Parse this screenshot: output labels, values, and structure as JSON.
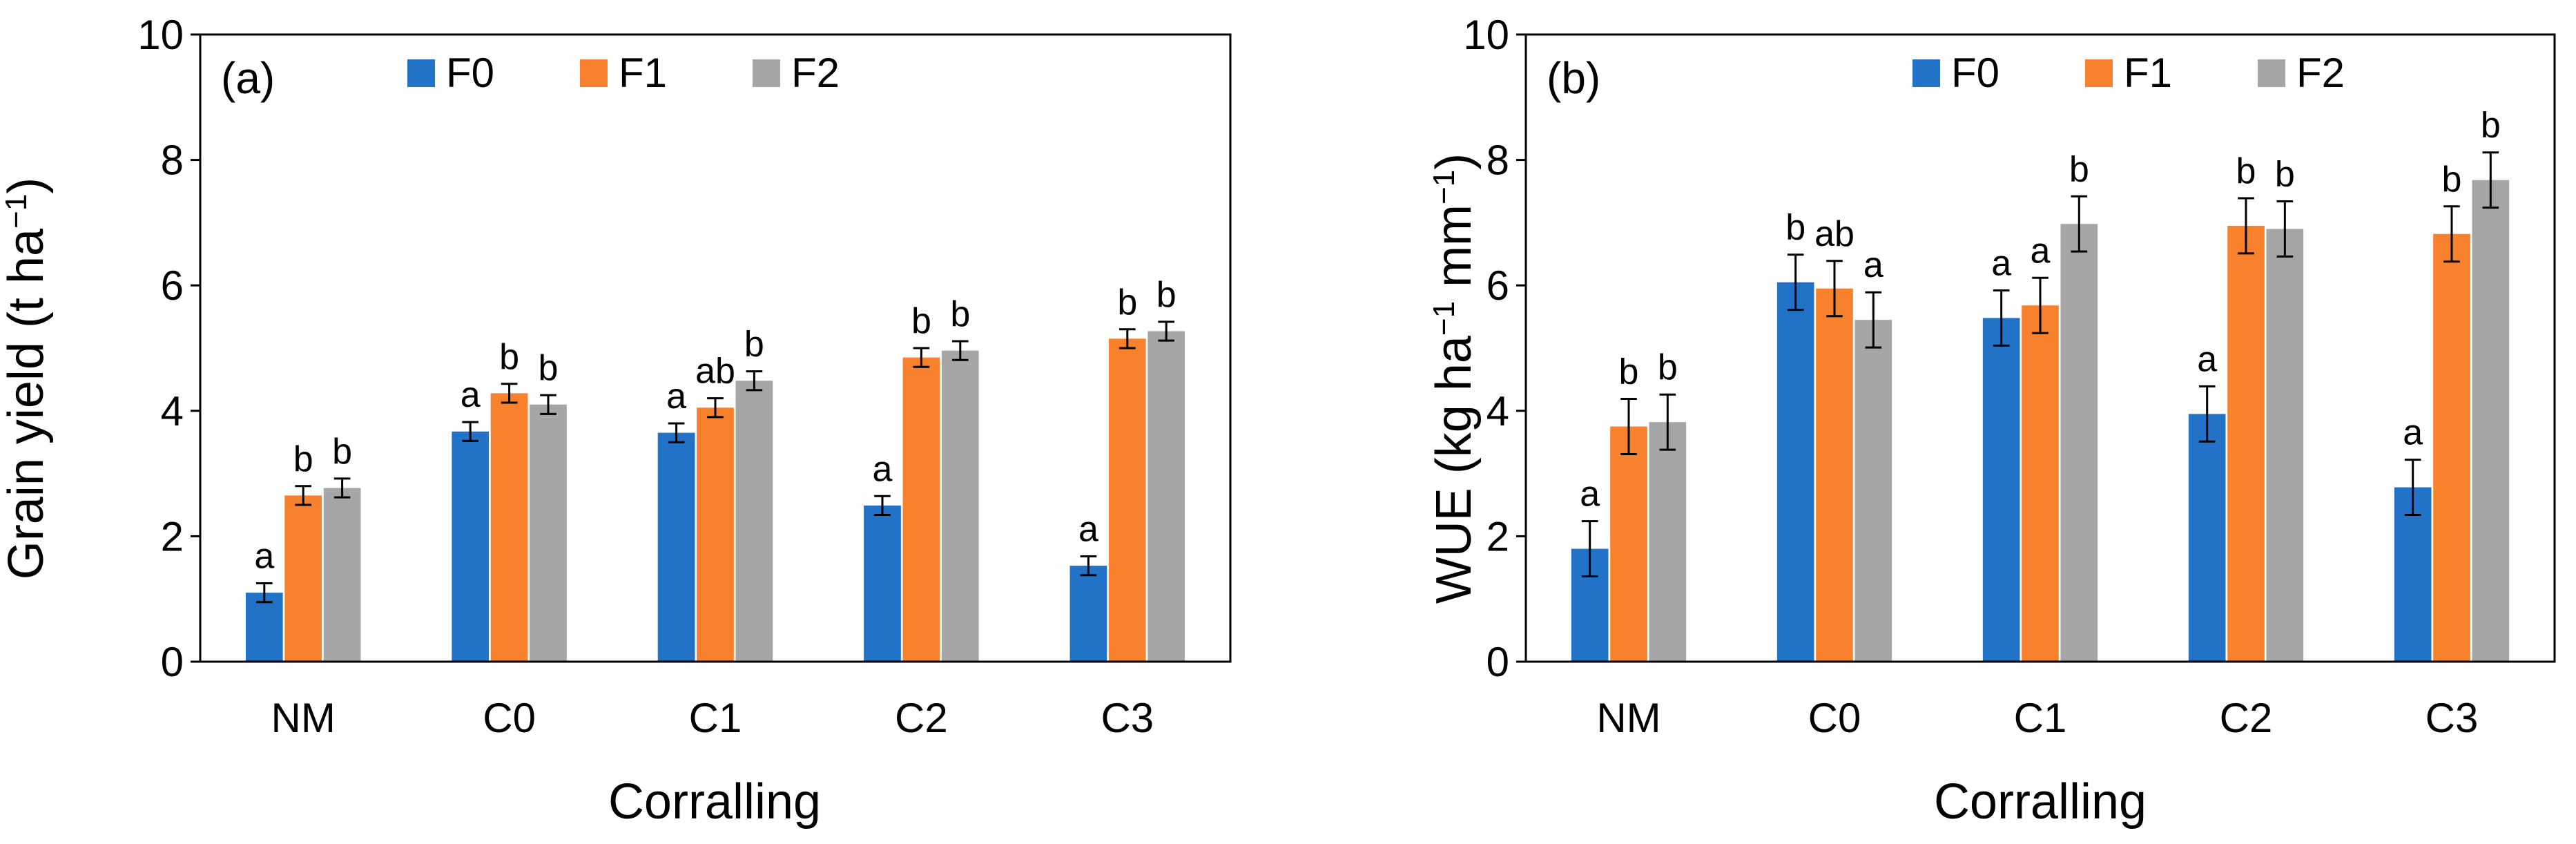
{
  "colors": {
    "F0": "#2273C7",
    "F1": "#F7812D",
    "F2": "#A6A6A6"
  },
  "chart_data": [
    {
      "type": "bar",
      "panel_label": "(a)",
      "categories": [
        "NM",
        "C0",
        "C1",
        "C2",
        "C3"
      ],
      "xlabel": "Corralling",
      "ylabel": {
        "prefix": "Grain yield (t ha",
        "sup": "−1",
        "suffix": ")"
      },
      "ylim": [
        0,
        10
      ],
      "yticks": [
        "0",
        "2",
        "4",
        "6",
        "8",
        "10"
      ],
      "legend": [
        "F0",
        "F1",
        "F2"
      ],
      "series": [
        {
          "name": "F0",
          "values": [
            1.1,
            3.67,
            3.65,
            2.49,
            1.53
          ],
          "errors": [
            0.15,
            0.15,
            0.15,
            0.15,
            0.15
          ],
          "letters": [
            "a",
            "a",
            "a",
            "a",
            "a"
          ]
        },
        {
          "name": "F1",
          "values": [
            2.65,
            4.28,
            4.05,
            4.85,
            5.15
          ],
          "errors": [
            0.15,
            0.15,
            0.15,
            0.15,
            0.15
          ],
          "letters": [
            "b",
            "b",
            "ab",
            "b",
            "b"
          ]
        },
        {
          "name": "F2",
          "values": [
            2.77,
            4.1,
            4.48,
            4.96,
            5.27
          ],
          "errors": [
            0.15,
            0.15,
            0.15,
            0.15,
            0.15
          ],
          "letters": [
            "b",
            "b",
            "b",
            "b",
            "b"
          ]
        }
      ]
    },
    {
      "type": "bar",
      "panel_label": "(b)",
      "categories": [
        "NM",
        "C0",
        "C1",
        "C2",
        "C3"
      ],
      "xlabel": "Corralling",
      "ylabel": {
        "prefix": "WUE (kg ha",
        "sup": "−1",
        "mid": " mm",
        "sup2": "−1",
        "suffix": ")"
      },
      "ylim": [
        0,
        10
      ],
      "yticks": [
        "0",
        "2",
        "4",
        "6",
        "8",
        "10"
      ],
      "legend": [
        "F0",
        "F1",
        "F2"
      ],
      "series": [
        {
          "name": "F0",
          "values": [
            1.8,
            6.05,
            5.48,
            3.95,
            2.78
          ],
          "errors": [
            0.44,
            0.44,
            0.44,
            0.44,
            0.44
          ],
          "letters": [
            "a",
            "b",
            "a",
            "a",
            "a"
          ]
        },
        {
          "name": "F1",
          "values": [
            3.75,
            5.95,
            5.68,
            6.95,
            6.82
          ],
          "errors": [
            0.44,
            0.44,
            0.44,
            0.44,
            0.44
          ],
          "letters": [
            "b",
            "ab",
            "a",
            "b",
            "b"
          ]
        },
        {
          "name": "F2",
          "values": [
            3.82,
            5.45,
            6.98,
            6.9,
            7.68
          ],
          "errors": [
            0.44,
            0.44,
            0.44,
            0.44,
            0.44
          ],
          "letters": [
            "b",
            "a",
            "b",
            "b",
            "b"
          ]
        }
      ]
    }
  ]
}
